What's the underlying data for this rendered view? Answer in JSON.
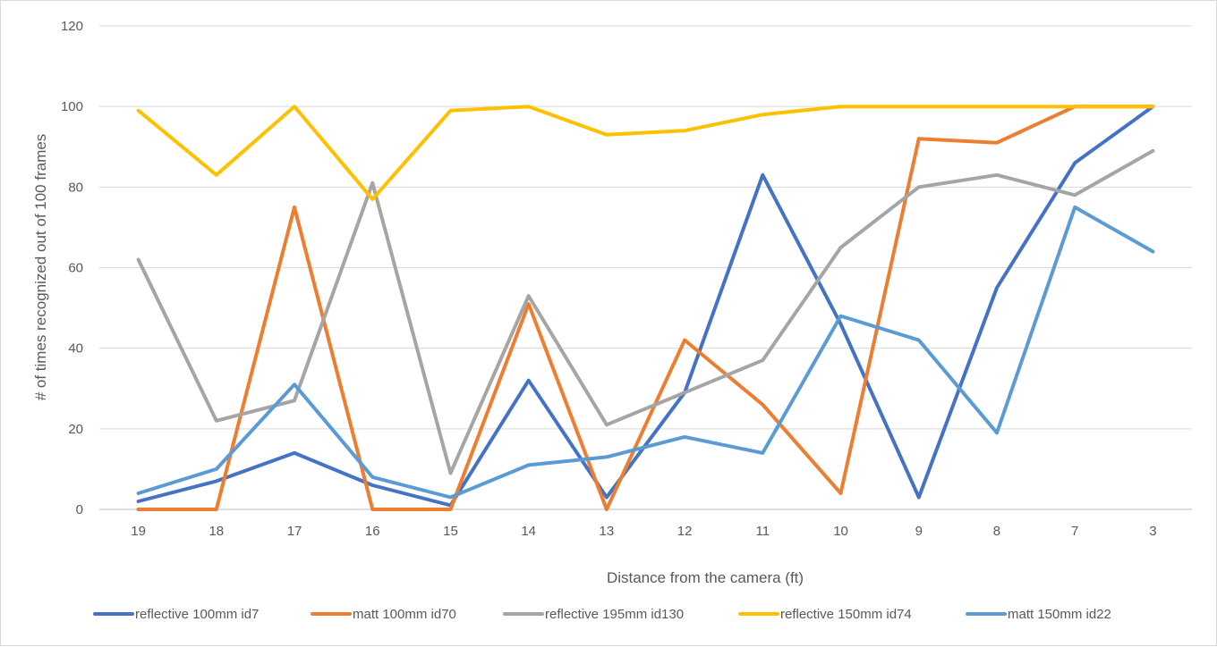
{
  "chart_data": {
    "type": "line",
    "categories": [
      "19",
      "18",
      "17",
      "16",
      "15",
      "14",
      "13",
      "12",
      "11",
      "10",
      "9",
      "8",
      "7",
      "3"
    ],
    "xlabel": "Distance from the camera (ft)",
    "ylabel": "# of times recognized out of 100 frames",
    "ylim": [
      0,
      120
    ],
    "yticks": [
      0,
      20,
      40,
      60,
      80,
      100,
      120
    ],
    "grid": true,
    "legend_position": "bottom",
    "series": [
      {
        "name": "reflective 100mm id7",
        "color": "#4472C4",
        "values": [
          2,
          7,
          14,
          6,
          1,
          32,
          3,
          29,
          83,
          46,
          3,
          55,
          86,
          100
        ]
      },
      {
        "name": "matt 100mm id70",
        "color": "#ED7D31",
        "values": [
          0,
          0,
          75,
          0,
          0,
          51,
          0,
          42,
          26,
          4,
          92,
          91,
          100,
          100
        ]
      },
      {
        "name": "reflective 195mm id130",
        "color": "#A5A5A5",
        "values": [
          62,
          22,
          27,
          81,
          9,
          53,
          21,
          29,
          37,
          65,
          80,
          83,
          78,
          89
        ]
      },
      {
        "name": "reflective 150mm id74",
        "color": "#FFC000",
        "values": [
          99,
          83,
          100,
          77,
          99,
          100,
          93,
          94,
          98,
          100,
          100,
          100,
          100,
          100
        ]
      },
      {
        "name": "matt 150mm id22",
        "color": "#5B9BD5",
        "values": [
          4,
          10,
          31,
          8,
          3,
          11,
          13,
          18,
          14,
          48,
          42,
          19,
          75,
          64
        ]
      }
    ]
  }
}
